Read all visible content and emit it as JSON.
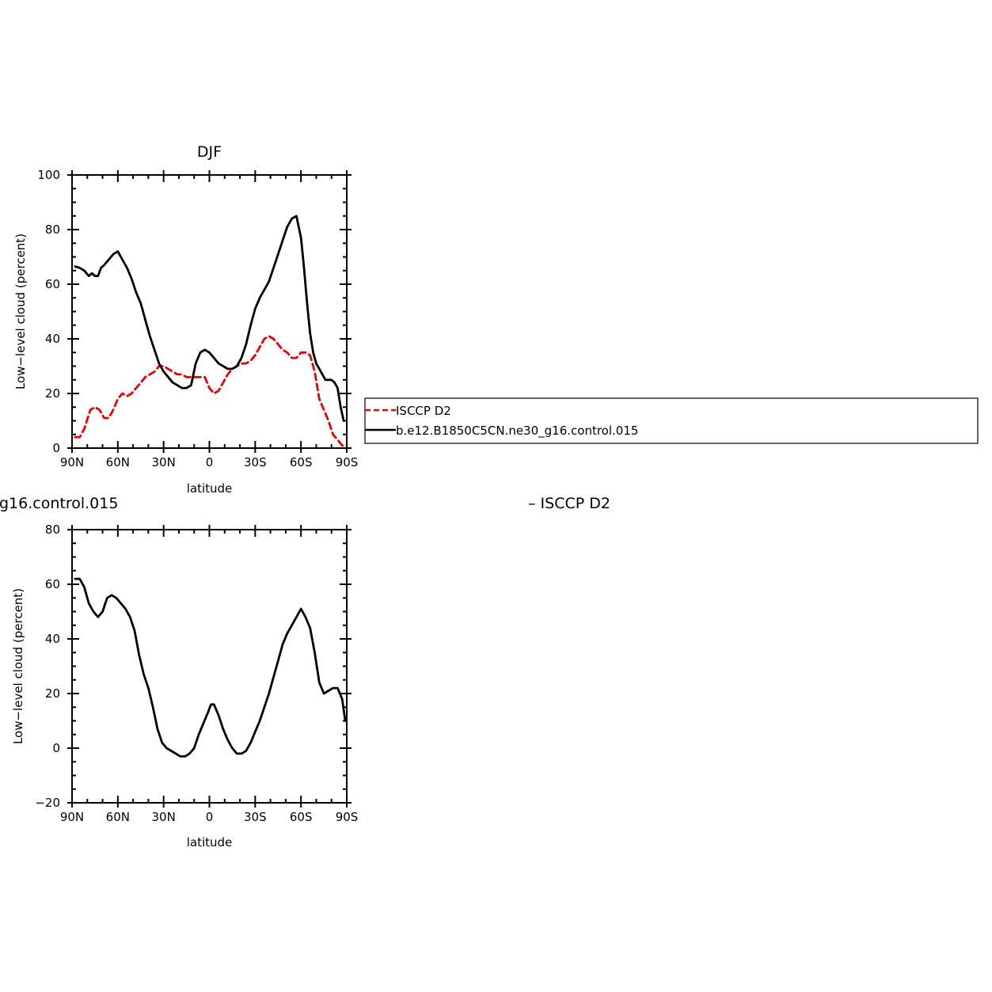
{
  "colors": {
    "model": "#000000",
    "obs": "#e60000",
    "frame": "#000000"
  },
  "legend": {
    "entries": [
      {
        "label": "ISCCP D2",
        "color": "#e60000",
        "dash": true
      },
      {
        "label": "b.e12.B1850C5CN.ne30_g16.control.015",
        "color": "#000000",
        "dash": false
      }
    ]
  },
  "bottom_titles": {
    "left": "g16.control.015",
    "right": "– ISCCP D2"
  },
  "chart_data": [
    {
      "type": "line",
      "title": "DJF",
      "xlabel": "latitude",
      "ylabel": "Low−level cloud (percent)",
      "xlim": [
        -90,
        90
      ],
      "ylim": [
        0,
        100
      ],
      "x_ticks": [
        -90,
        -60,
        -30,
        0,
        30,
        60,
        90
      ],
      "x_tick_labels": [
        "90N",
        "60N",
        "30N",
        "0",
        "30S",
        "60S",
        "90S"
      ],
      "y_ticks": [
        0,
        20,
        40,
        60,
        80,
        100
      ],
      "y_tick_labels": [
        "0",
        "20",
        "40",
        "60",
        "80",
        "100"
      ],
      "grid": false,
      "legend_position": "right",
      "series": [
        {
          "name": "ISCCP D2",
          "style": "dashed",
          "color": "#e60000",
          "x": [
            -88,
            -85,
            -82,
            -78,
            -75,
            -72,
            -69,
            -66,
            -63,
            -60,
            -57,
            -54,
            -51,
            -48,
            -45,
            -42,
            -39,
            -36,
            -33,
            -30,
            -27,
            -24,
            -21,
            -18,
            -15,
            -12,
            -9,
            -6,
            -3,
            0,
            3,
            6,
            9,
            12,
            15,
            18,
            21,
            24,
            27,
            30,
            33,
            36,
            39,
            42,
            45,
            48,
            51,
            54,
            57,
            60,
            63,
            66,
            69,
            72,
            75,
            78,
            81,
            84,
            87,
            89
          ],
          "y": [
            4,
            4,
            7,
            14,
            15,
            14,
            11,
            11,
            14,
            18,
            20,
            19,
            20,
            22,
            24,
            26,
            27,
            28,
            30,
            30,
            29,
            28,
            27,
            27,
            26,
            26,
            26,
            26,
            26,
            22,
            20,
            21,
            24,
            27,
            29,
            30,
            31,
            31,
            32,
            34,
            37,
            40,
            41,
            40,
            38,
            36,
            35,
            33,
            33,
            35,
            35,
            34,
            28,
            18,
            14,
            10,
            5,
            3,
            1,
            0
          ]
        },
        {
          "name": "b.e12.B1850C5CN.ne30_g16.control.015",
          "style": "solid",
          "color": "#000000",
          "x": [
            -88,
            -85,
            -82,
            -79,
            -77,
            -75,
            -73,
            -71,
            -69,
            -66,
            -63,
            -60,
            -57,
            -54,
            -51,
            -48,
            -45,
            -42,
            -39,
            -36,
            -33,
            -30,
            -27,
            -24,
            -21,
            -18,
            -15,
            -12,
            -9,
            -6,
            -3,
            0,
            3,
            6,
            9,
            12,
            15,
            18,
            21,
            24,
            27,
            30,
            33,
            36,
            39,
            42,
            45,
            48,
            51,
            54,
            57,
            60,
            62,
            64,
            66,
            68,
            70,
            72,
            74,
            76,
            78,
            80,
            82,
            84,
            86,
            88
          ],
          "y": [
            66.5,
            66,
            65,
            63,
            64,
            63,
            63,
            66,
            67,
            69,
            71,
            72,
            69,
            66,
            62,
            57,
            53,
            47,
            41,
            36,
            31,
            28,
            26,
            24,
            23,
            22,
            22,
            23,
            31,
            35,
            36,
            35,
            33,
            31,
            30,
            29,
            29,
            30,
            33,
            38,
            45,
            51,
            55,
            58,
            61,
            66,
            71,
            76,
            81,
            84,
            85,
            77,
            66,
            53,
            42,
            35,
            31,
            29,
            27,
            25,
            25,
            25,
            24,
            22,
            15,
            10
          ]
        }
      ]
    },
    {
      "type": "line",
      "title": "",
      "xlabel": "latitude",
      "ylabel": "Low−level cloud (percent)",
      "xlim": [
        -90,
        90
      ],
      "ylim": [
        -20,
        80
      ],
      "x_ticks": [
        -90,
        -60,
        -30,
        0,
        30,
        60,
        90
      ],
      "x_tick_labels": [
        "90N",
        "60N",
        "30N",
        "0",
        "30S",
        "60S",
        "90S"
      ],
      "y_ticks": [
        -20,
        0,
        20,
        40,
        60,
        80
      ],
      "y_tick_labels": [
        "−20",
        "0",
        "20",
        "40",
        "60",
        "80"
      ],
      "grid": false,
      "series": [
        {
          "style": "solid",
          "color": "#000000",
          "x": [
            -88,
            -85,
            -82,
            -79,
            -76,
            -73,
            -70,
            -67,
            -64,
            -61,
            -58,
            -55,
            -52,
            -49,
            -46,
            -43,
            -40,
            -37,
            -34,
            -31,
            -28,
            -25,
            -22,
            -19,
            -16,
            -13,
            -10,
            -7,
            -4,
            -1,
            1,
            3,
            6,
            9,
            12,
            15,
            18,
            21,
            24,
            27,
            30,
            33,
            36,
            39,
            42,
            45,
            48,
            51,
            54,
            57,
            60,
            63,
            66,
            69,
            72,
            75,
            78,
            81,
            84,
            87,
            89
          ],
          "y": [
            62,
            62,
            59,
            53,
            50,
            48,
            50,
            55,
            56,
            55,
            53,
            51,
            48,
            43,
            34,
            27,
            22,
            15,
            7,
            2,
            0,
            -1,
            -2,
            -3,
            -3,
            -2,
            0,
            5,
            9,
            13,
            16,
            16,
            12,
            7,
            3,
            0,
            -2,
            -2,
            -1,
            2,
            6,
            10,
            15,
            20,
            26,
            32,
            38,
            42,
            45,
            48,
            51,
            48,
            44,
            35,
            24,
            20,
            21,
            22,
            22,
            18,
            10
          ]
        }
      ]
    }
  ]
}
